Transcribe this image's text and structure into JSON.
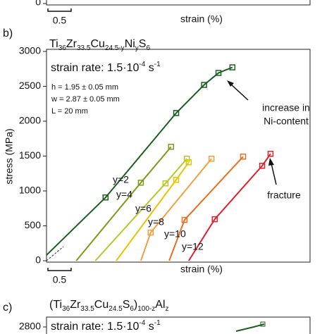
{
  "panel_a": {
    "yticks": [
      0
    ],
    "scale_bar": 0.5,
    "xlabel": "strain (%)"
  },
  "chart_data": {
    "type": "line",
    "panel_label": "b)",
    "title": [
      "Ti",
      "36",
      "Zr",
      "33.5",
      "Cu",
      "24.5-y",
      "Ni",
      "y",
      "S",
      "6"
    ],
    "annotations": {
      "strain_rate": [
        "strain rate: 1.5·10",
        "-4",
        " s",
        "-1"
      ],
      "dimensions": [
        "h = 1.95 ± 0.05 mm",
        "w = 2.87 ± 0.05 mm",
        "L = 20 mm"
      ],
      "trend": [
        "increase in",
        "Ni-content"
      ],
      "fracture": "fracture"
    },
    "xlabel": "strain (%)",
    "ylabel": "stress (MPa)",
    "xlim": [
      0,
      5.67
    ],
    "ylim": [
      0,
      3000
    ],
    "yticks": [
      0,
      500,
      1000,
      1500,
      2000,
      2500,
      3000
    ],
    "scale_bar": 0.5,
    "series": [
      {
        "color": "#1b5e20",
        "x": [
          0,
          1.27,
          2.79,
          3.39,
          3.7,
          4.0
        ],
        "values": [
          80,
          907,
          2117,
          2520,
          2692,
          2772
        ]
      },
      {
        "name": "y=2",
        "color": "#7a9a1a",
        "x": [
          0.64,
          2.03,
          2.68
        ],
        "values": [
          0,
          1119,
          1633
        ]
      },
      {
        "name": "y=4",
        "color": "#b4c828",
        "x": [
          1.05,
          2.56,
          3.02
        ],
        "values": [
          0,
          1109,
          1462
        ]
      },
      {
        "name": "y=6",
        "color": "#e8c400",
        "x": [
          1.5,
          2.79,
          3.06
        ],
        "values": [
          0,
          1159,
          1411
        ]
      },
      {
        "name": "y=8",
        "color": "#f0a040",
        "x": [
          2.03,
          2.24,
          3.55
        ],
        "values": [
          0,
          403,
          1462
        ]
      },
      {
        "name": "y=10",
        "color": "#e87020",
        "x": [
          2.64,
          2.97,
          4.23
        ],
        "values": [
          0,
          585,
          1492
        ]
      },
      {
        "name": "y=12",
        "color": "#e0202a",
        "x": [
          3.06,
          3.62,
          4.64,
          4.82
        ],
        "values": [
          0,
          595,
          1361,
          1532
        ]
      }
    ]
  },
  "panel_c": {
    "panel_label": "c)",
    "title": [
      "(Ti",
      "36",
      "Zr",
      "33.5",
      "Cu",
      "24.5",
      "S",
      "6",
      ")",
      "100-z",
      "Al",
      "z"
    ],
    "yticks": [
      2800
    ],
    "strain_rate": [
      "strain rate: 1.5·10",
      "-4",
      " s",
      "-1"
    ]
  }
}
